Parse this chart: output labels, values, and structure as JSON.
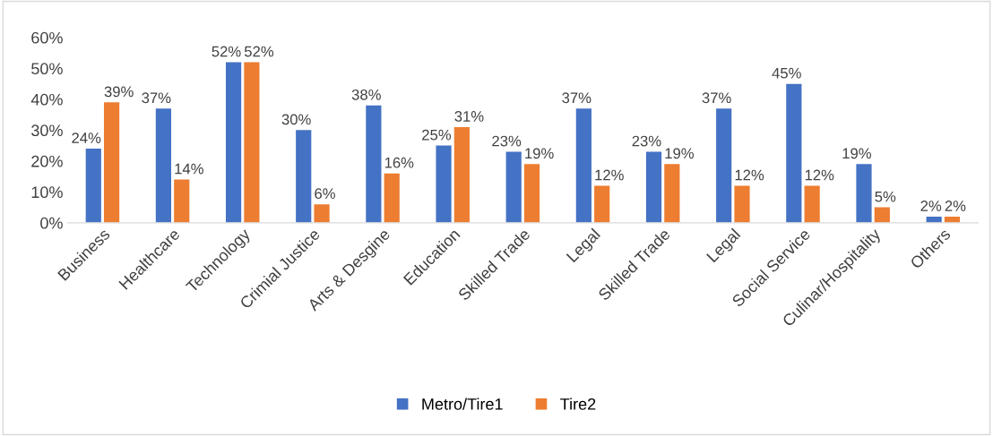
{
  "chart_data": {
    "type": "bar",
    "categories": [
      "Business",
      "Healthcare",
      "Technology",
      "Crimial Justice",
      "Arts & Desgine",
      "Education",
      "Skilled Trade",
      "Legal",
      "Skilled Trade",
      "Legal",
      "Social Service",
      "Culinar/Hospitality",
      "Others"
    ],
    "series": [
      {
        "name": "Metro/Tire1",
        "color": "#4472c4",
        "values": [
          24,
          37,
          52,
          30,
          38,
          25,
          23,
          37,
          23,
          37,
          45,
          19,
          2
        ],
        "value_labels": [
          "24%",
          "37%",
          "52%",
          "30%",
          "38%",
          "25%",
          "23%",
          "37%",
          "23%",
          "37%",
          "45%",
          "19%",
          "2%"
        ]
      },
      {
        "name": "Tire2",
        "color": "#ed7d31",
        "values": [
          39,
          14,
          52,
          6,
          16,
          31,
          19,
          12,
          19,
          12,
          12,
          5,
          2
        ],
        "value_labels": [
          "39%",
          "14%",
          "52%",
          "6%",
          "16%",
          "31%",
          "19%",
          "12%",
          "19%",
          "12%",
          "12%",
          "5%",
          "2%"
        ]
      }
    ],
    "ylim": [
      0,
      60
    ],
    "yticks": [
      {
        "value": 0,
        "label": "0%"
      },
      {
        "value": 10,
        "label": "10%"
      },
      {
        "value": 20,
        "label": "20%"
      },
      {
        "value": 30,
        "label": "30%"
      },
      {
        "value": 40,
        "label": "40%"
      },
      {
        "value": 50,
        "label": "50%"
      },
      {
        "value": 60,
        "label": "60%"
      }
    ],
    "grid": false,
    "legend": "bottom"
  }
}
